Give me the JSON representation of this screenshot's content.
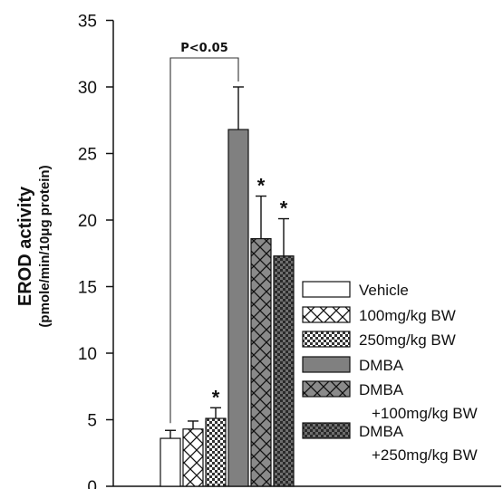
{
  "chart_data": {
    "type": "bar",
    "title": "",
    "xlabel": "",
    "ylabel": "EROD activity",
    "ylabel_sub": "(pmole/min/10μg protein)",
    "ylim": [
      0,
      35
    ],
    "yticks": [
      "0",
      "5",
      "10",
      "15",
      "20",
      "25",
      "30",
      "35"
    ],
    "legend_position": "lower-right",
    "categories": [
      "Vehicle",
      "100mg/kg BW",
      "250mg/kg BW",
      "DMBA",
      "DMBA +100mg/kg BW",
      "DMBA +250mg/kg BW"
    ],
    "series": [
      {
        "values": [
          3.6,
          4.3,
          5.1,
          26.8,
          18.6,
          17.3
        ],
        "errors": [
          0.6,
          0.6,
          0.8,
          3.2,
          3.2,
          2.8
        ]
      }
    ],
    "bar_styles": [
      {
        "fill": "white",
        "pattern": "none"
      },
      {
        "fill": "white",
        "pattern": "cross"
      },
      {
        "fill": "white",
        "pattern": "checker"
      },
      {
        "fill": "#808080",
        "pattern": "none"
      },
      {
        "fill": "#8a8a8a",
        "pattern": "cross"
      },
      {
        "fill": "#6e6e6e",
        "pattern": "checker"
      }
    ],
    "legend": [
      {
        "lines": [
          "Vehicle"
        ]
      },
      {
        "lines": [
          "100mg/kg BW"
        ]
      },
      {
        "lines": [
          "250mg/kg BW"
        ]
      },
      {
        "lines": [
          "DMBA"
        ]
      },
      {
        "lines": [
          "DMBA",
          "+100mg/kg BW"
        ]
      },
      {
        "lines": [
          "DMBA",
          "+250mg/kg BW"
        ]
      }
    ],
    "significance_marks": [
      "",
      "",
      "*",
      "",
      "*",
      "*"
    ],
    "comparison": {
      "label": "P<0.05",
      "from_bar": 0,
      "to_bar": 3
    }
  }
}
